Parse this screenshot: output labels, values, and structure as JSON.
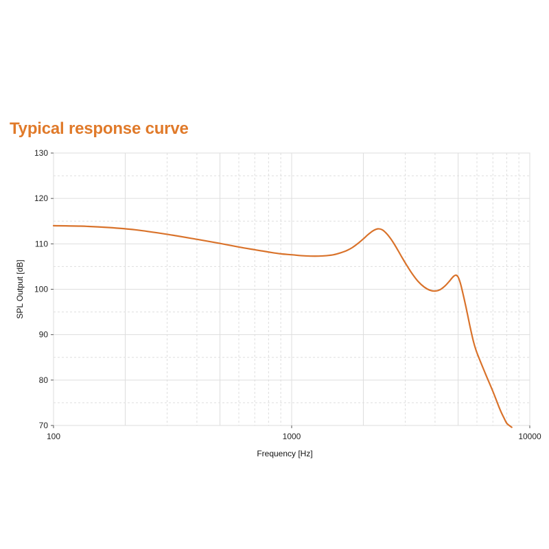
{
  "title": "Typical response curve",
  "colors": {
    "title": "#E07A2A",
    "curve": "#D9722A",
    "grid": "#DDDDDD",
    "axis": "#555555"
  },
  "chart_data": {
    "type": "line",
    "title": "Typical response curve",
    "xlabel": "Frequency [Hz]",
    "ylabel": "SPL Output [dB]",
    "xscale": "log",
    "xlim": [
      100,
      10000
    ],
    "ylim": [
      70,
      130
    ],
    "x_ticks": [
      100,
      1000,
      10000
    ],
    "x_tick_labels": [
      "100",
      "1000",
      "10000"
    ],
    "y_ticks": [
      70,
      80,
      90,
      100,
      110,
      120,
      130
    ],
    "y_tick_labels": [
      "70",
      "80",
      "90",
      "100",
      "110",
      "120",
      "130"
    ],
    "y_minor_step": 5,
    "grid": true,
    "legend": "none",
    "series": [
      {
        "name": "SPL Output",
        "x": [
          100,
          130,
          170,
          220,
          300,
          400,
          500,
          600,
          700,
          800,
          900,
          1000,
          1100,
          1200,
          1300,
          1400,
          1500,
          1600,
          1700,
          1800,
          1900,
          2000,
          2100,
          2200,
          2300,
          2400,
          2500,
          2600,
          2700,
          2800,
          2900,
          3000,
          3200,
          3400,
          3600,
          3800,
          4000,
          4200,
          4400,
          4600,
          4700,
          4800,
          4900,
          5000,
          5100,
          5200,
          5400,
          5600,
          5800,
          6000,
          6500,
          7000,
          7500,
          7800,
          8000,
          8200,
          8400
        ],
        "values": [
          114.0,
          113.9,
          113.6,
          113.1,
          112.1,
          111.0,
          110.1,
          109.3,
          108.7,
          108.2,
          107.8,
          107.6,
          107.4,
          107.3,
          107.3,
          107.4,
          107.6,
          108.0,
          108.5,
          109.2,
          110.1,
          111.1,
          112.1,
          112.9,
          113.3,
          113.1,
          112.3,
          111.2,
          109.9,
          108.5,
          107.1,
          105.8,
          103.5,
          101.7,
          100.5,
          99.8,
          99.6,
          99.9,
          100.7,
          101.8,
          102.4,
          102.9,
          103.1,
          102.7,
          101.5,
          99.8,
          96.0,
          92.0,
          88.5,
          86.0,
          81.5,
          77.5,
          73.5,
          71.6,
          70.5,
          70.0,
          69.6
        ]
      }
    ]
  }
}
